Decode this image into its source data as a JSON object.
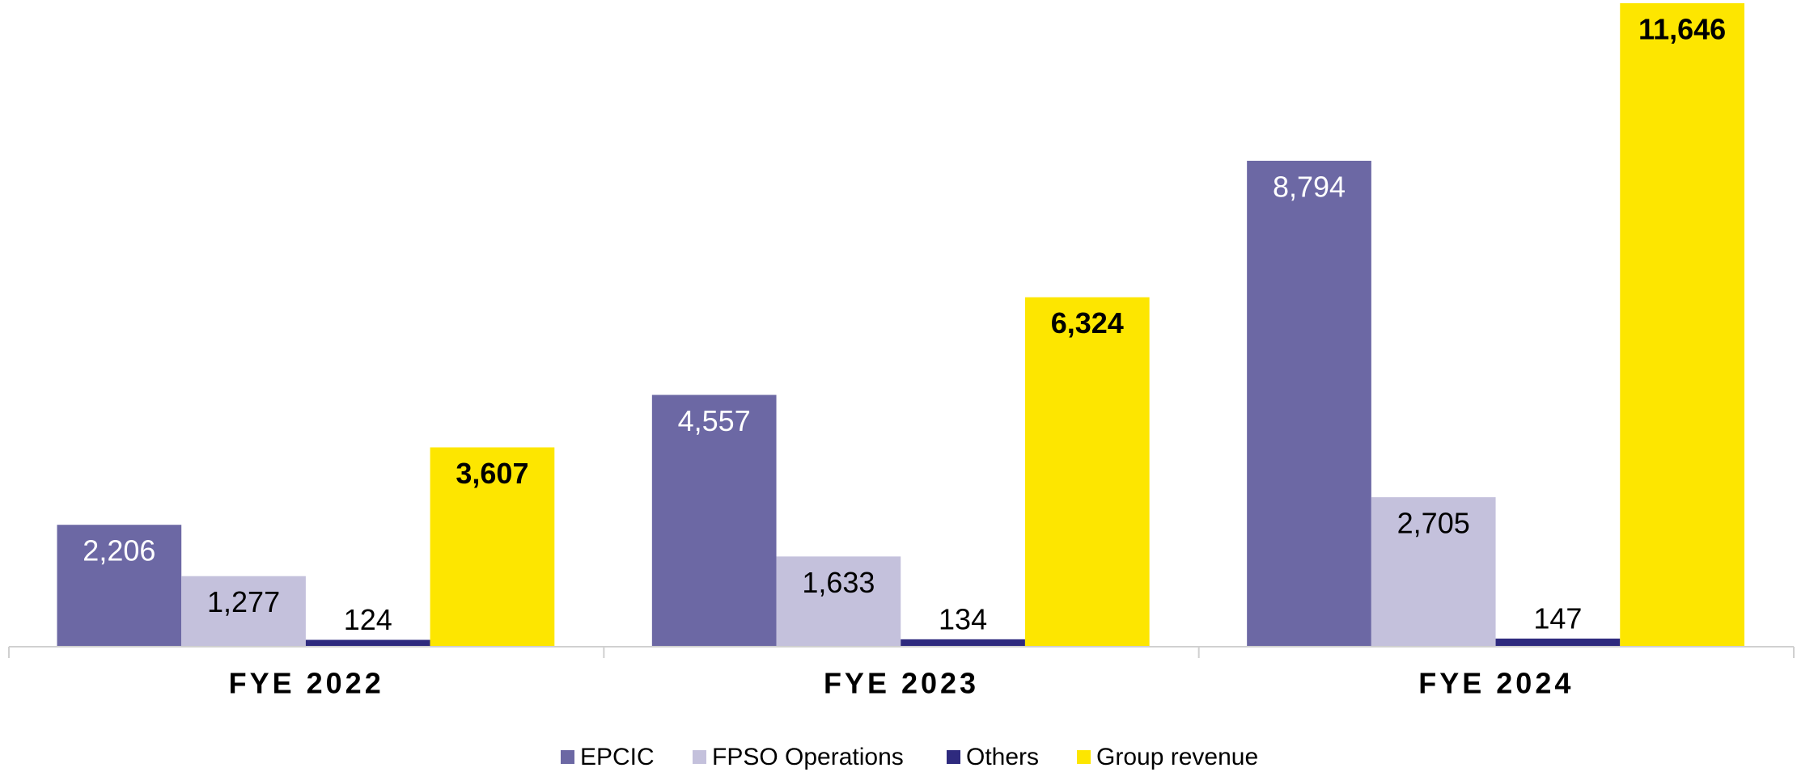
{
  "chart_data": {
    "type": "bar",
    "categories": [
      "FYE 2022",
      "FYE 2023",
      "FYE 2024"
    ],
    "ylim": [
      0,
      11660
    ],
    "series": [
      {
        "name": "EPCIC",
        "color": "#6c68a4",
        "label_color": "#ffffff",
        "values": [
          2206,
          4557,
          8794
        ],
        "value_labels": [
          "2,206",
          "4,557",
          "8,794"
        ]
      },
      {
        "name": "FPSO Operations",
        "color": "#c4c1dc",
        "label_color": "#000000",
        "values": [
          1277,
          1633,
          2705
        ],
        "value_labels": [
          "1,277",
          "1,633",
          "2,705"
        ]
      },
      {
        "name": "Others",
        "color": "#2e2a7e",
        "label_color": "#000000",
        "values": [
          124,
          134,
          147
        ],
        "value_labels": [
          "124",
          "134",
          "147"
        ]
      },
      {
        "name": "Group revenue",
        "color": "#fde600",
        "label_color": "#000000",
        "label_weight": "bold",
        "values": [
          3607,
          6324,
          11646
        ],
        "value_labels": [
          "3,607",
          "6,324",
          "11,646"
        ]
      }
    ],
    "legend": "bottom"
  }
}
